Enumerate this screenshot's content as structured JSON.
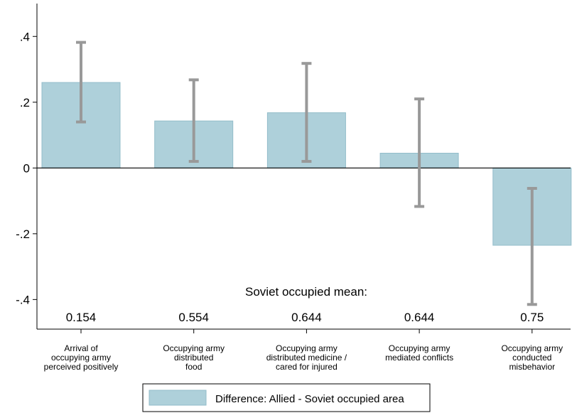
{
  "chart_data": {
    "type": "bar",
    "categories": [
      [
        "Arrival of",
        "occupying army",
        "perceived positively"
      ],
      [
        "Occupying army",
        "distributed",
        "food"
      ],
      [
        "Occupying army",
        "distributed medicine /",
        "cared for injured"
      ],
      [
        "Occupying army",
        "mediated conflicts"
      ],
      [
        "Occupying army",
        "conducted",
        "misbehavior"
      ]
    ],
    "series": [
      {
        "name": "Difference: Allied - Soviet occupied area",
        "values": [
          0.26,
          0.143,
          0.168,
          0.045,
          -0.235
        ],
        "ci_low": [
          0.14,
          0.02,
          0.02,
          -0.117,
          -0.415
        ],
        "ci_high": [
          0.382,
          0.268,
          0.318,
          0.21,
          -0.062
        ]
      }
    ],
    "annotation_title": "Soviet occupied mean:",
    "annotation_values": [
      "0.154",
      "0.554",
      "0.644",
      "0.644",
      "0.75"
    ],
    "yticks": [
      ".4",
      ".2",
      "0",
      "-.2",
      "-.4"
    ],
    "ytick_values": [
      0.4,
      0.2,
      0,
      -0.2,
      -0.4
    ],
    "ylim": [
      -0.49,
      0.5
    ],
    "bar_color": "#aed0da",
    "bar_edge_color": "#93bdca",
    "ci_color": "#999999",
    "legend_position": "bottom"
  }
}
